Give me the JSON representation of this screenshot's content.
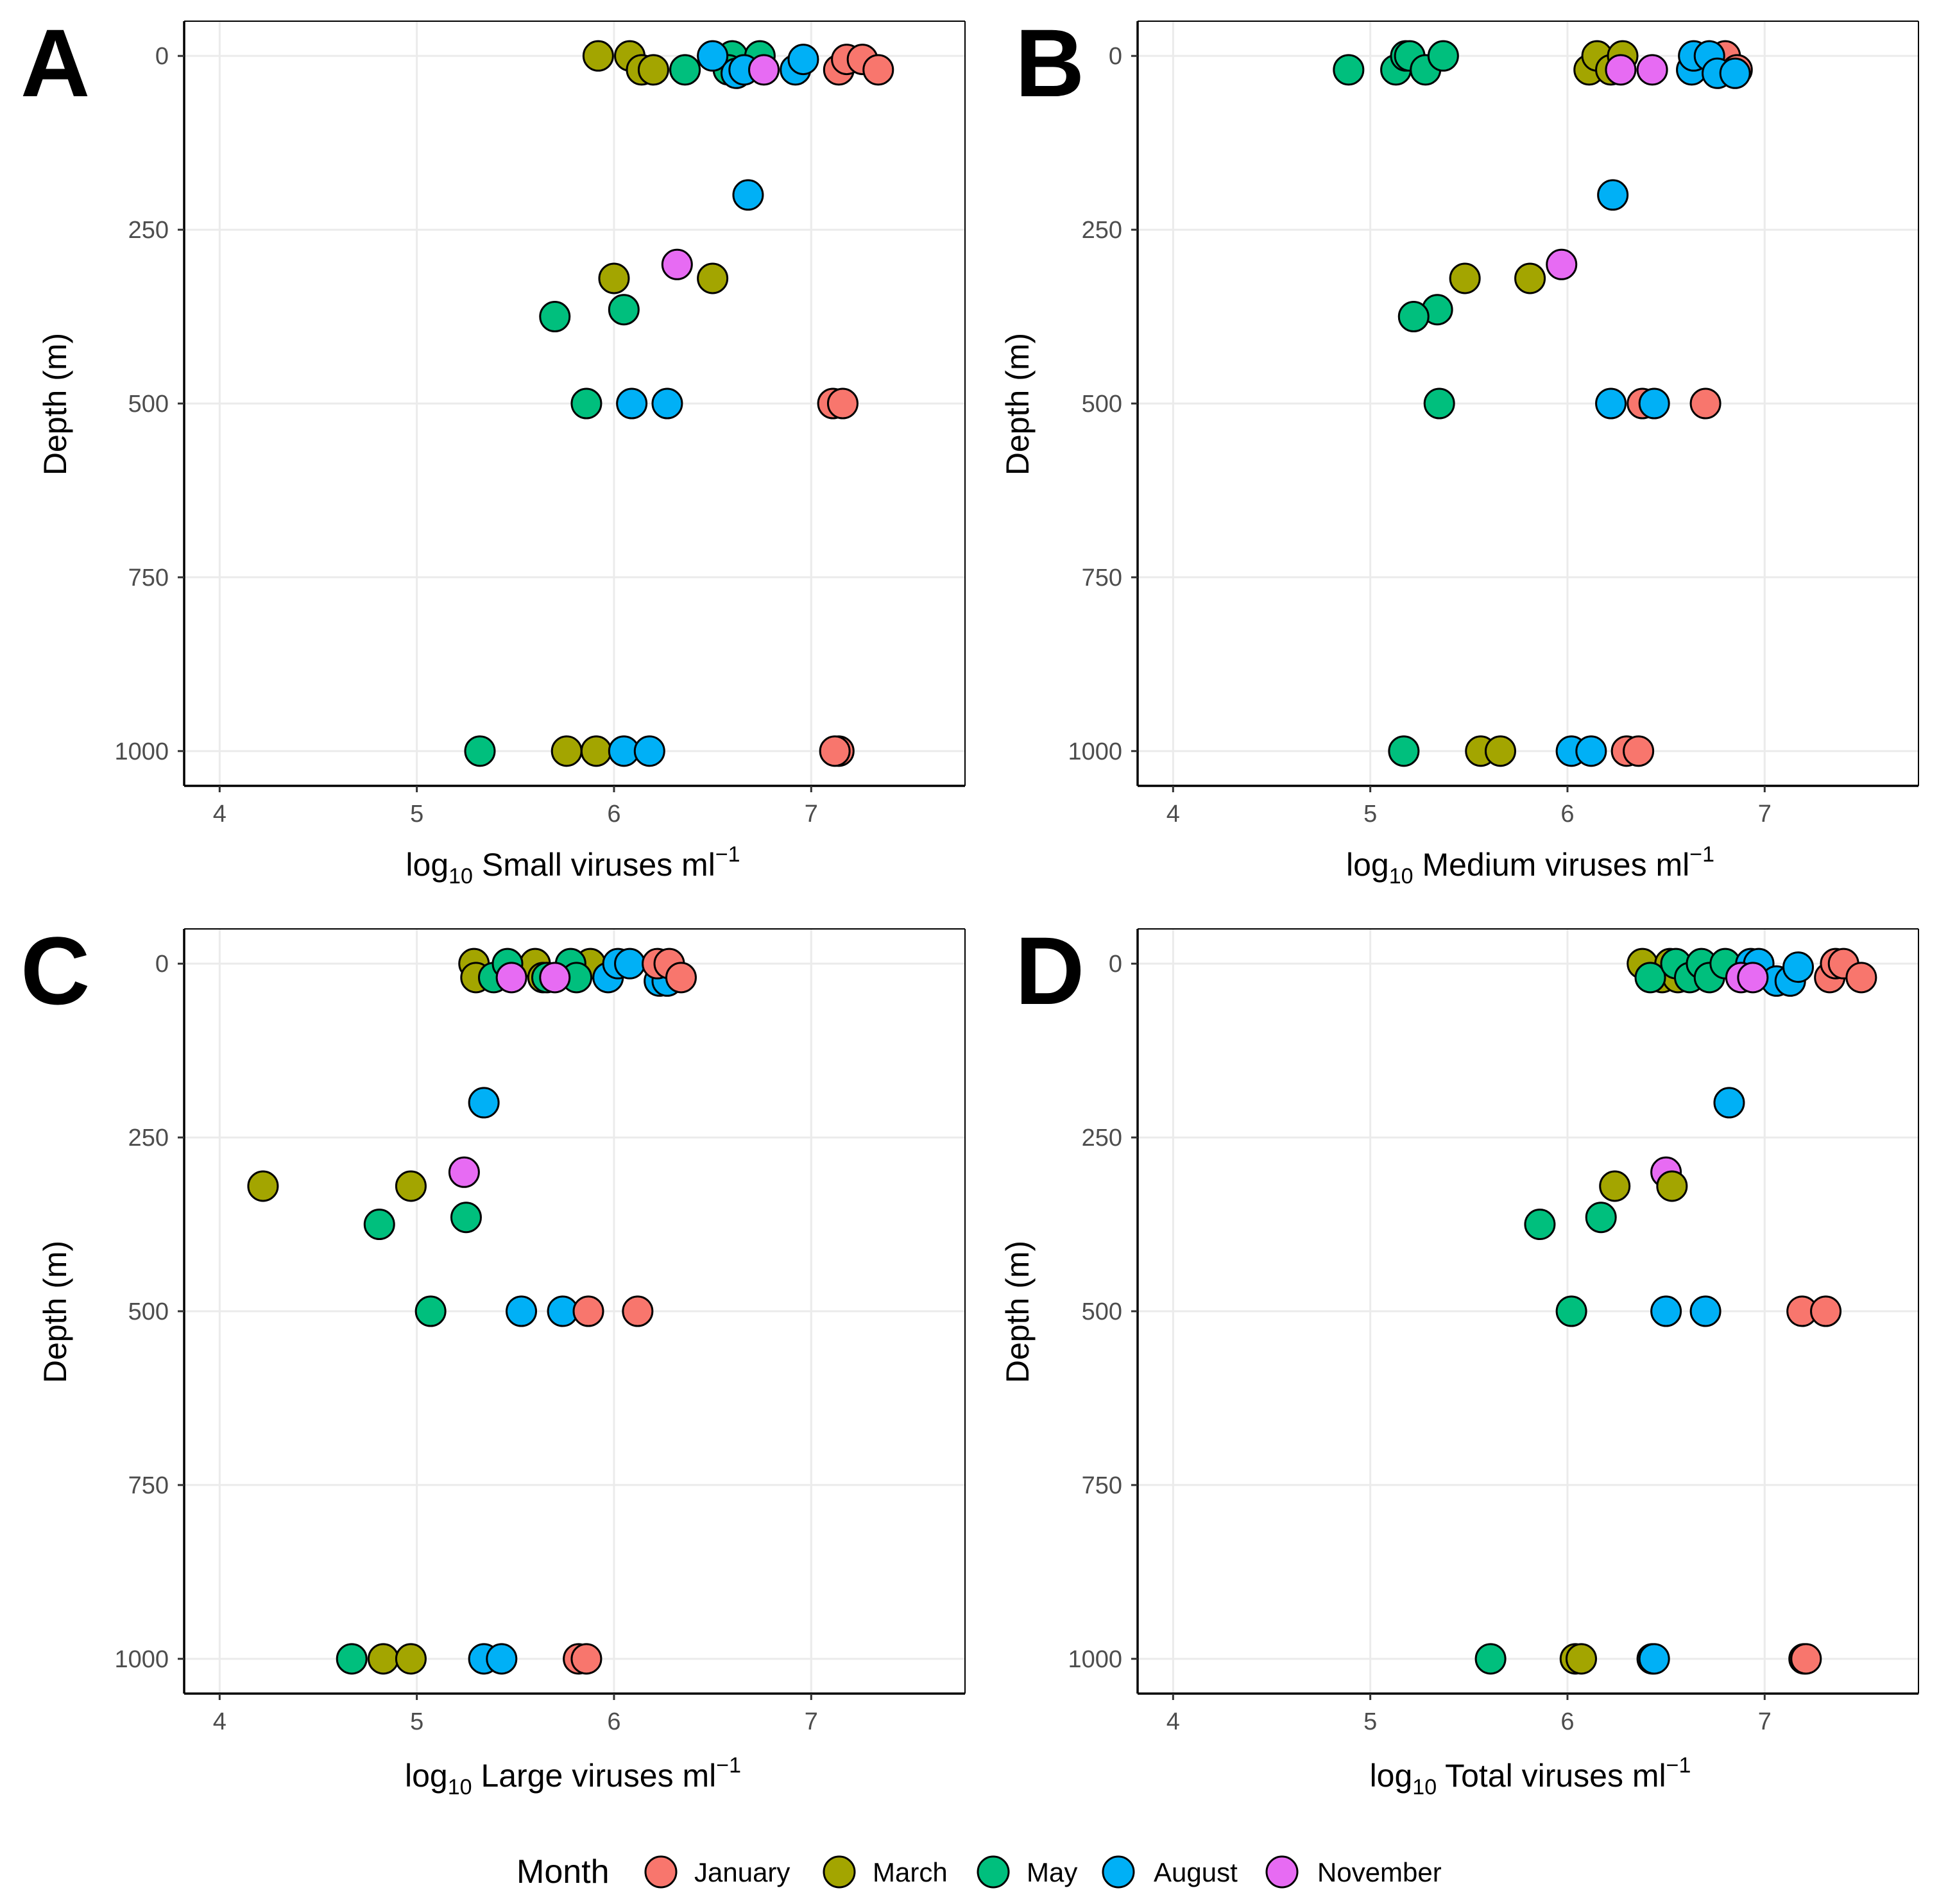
{
  "colors": {
    "January": "#F8766D",
    "March": "#A3A500",
    "May": "#00BF7D",
    "August": "#00B0F6",
    "November": "#E76BF3",
    "grid": "#ebebeb",
    "axis": "#000000",
    "tick_text": "#4d4d4d"
  },
  "legend": {
    "title": "Month",
    "entries": [
      "January",
      "March",
      "May",
      "August",
      "November"
    ]
  },
  "chart_data": [
    {
      "panel": "A",
      "type": "scatter",
      "xlabel": {
        "prefix": "log",
        "sub": "10",
        "main": " Small viruses ml",
        "sup": "−1"
      },
      "ylabel": "Depth (m)",
      "xlim": [
        3.82,
        7.78
      ],
      "ylim": [
        1050,
        -50
      ],
      "xticks": [
        "4",
        "5",
        "6",
        "7"
      ],
      "yticks": [
        "0",
        "250",
        "500",
        "750",
        "1000"
      ],
      "points": [
        {
          "month": "March",
          "x": 5.92,
          "y": 0
        },
        {
          "month": "March",
          "x": 6.08,
          "y": 0
        },
        {
          "month": "March",
          "x": 6.14,
          "y": 20
        },
        {
          "month": "March",
          "x": 6.2,
          "y": 20
        },
        {
          "month": "May",
          "x": 6.36,
          "y": 20
        },
        {
          "month": "May",
          "x": 6.6,
          "y": 0
        },
        {
          "month": "May",
          "x": 6.74,
          "y": 0
        },
        {
          "month": "May",
          "x": 6.58,
          "y": 20
        },
        {
          "month": "August",
          "x": 6.5,
          "y": 0
        },
        {
          "month": "August",
          "x": 6.62,
          "y": 25
        },
        {
          "month": "August",
          "x": 6.66,
          "y": 20
        },
        {
          "month": "August",
          "x": 6.92,
          "y": 20
        },
        {
          "month": "August",
          "x": 6.96,
          "y": 5
        },
        {
          "month": "November",
          "x": 6.76,
          "y": 20
        },
        {
          "month": "January",
          "x": 7.14,
          "y": 20
        },
        {
          "month": "January",
          "x": 7.18,
          "y": 5
        },
        {
          "month": "January",
          "x": 7.26,
          "y": 5
        },
        {
          "month": "January",
          "x": 7.34,
          "y": 20
        },
        {
          "month": "August",
          "x": 6.68,
          "y": 200
        },
        {
          "month": "November",
          "x": 6.32,
          "y": 300
        },
        {
          "month": "March",
          "x": 6.0,
          "y": 320
        },
        {
          "month": "March",
          "x": 6.5,
          "y": 320
        },
        {
          "month": "May",
          "x": 6.05,
          "y": 365
        },
        {
          "month": "May",
          "x": 5.7,
          "y": 375
        },
        {
          "month": "May",
          "x": 5.86,
          "y": 500
        },
        {
          "month": "August",
          "x": 6.09,
          "y": 500
        },
        {
          "month": "August",
          "x": 6.27,
          "y": 500
        },
        {
          "month": "January",
          "x": 7.11,
          "y": 500
        },
        {
          "month": "January",
          "x": 7.16,
          "y": 500
        },
        {
          "month": "May",
          "x": 5.32,
          "y": 1000
        },
        {
          "month": "March",
          "x": 5.76,
          "y": 1000
        },
        {
          "month": "March",
          "x": 5.91,
          "y": 1000
        },
        {
          "month": "August",
          "x": 6.05,
          "y": 1000
        },
        {
          "month": "August",
          "x": 6.18,
          "y": 1000
        },
        {
          "month": "January",
          "x": 7.14,
          "y": 1000
        },
        {
          "month": "January",
          "x": 7.12,
          "y": 1000
        }
      ]
    },
    {
      "panel": "B",
      "type": "scatter",
      "xlabel": {
        "prefix": "log",
        "sub": "10",
        "main": " Medium viruses ml",
        "sup": "−1"
      },
      "ylabel": "Depth (m)",
      "xlim": [
        3.82,
        7.78
      ],
      "ylim": [
        1050,
        -50
      ],
      "xticks": [
        "4",
        "5",
        "6",
        "7"
      ],
      "yticks": [
        "0",
        "250",
        "500",
        "750",
        "1000"
      ],
      "points": [
        {
          "month": "May",
          "x": 4.89,
          "y": 20
        },
        {
          "month": "May",
          "x": 5.13,
          "y": 20
        },
        {
          "month": "May",
          "x": 5.18,
          "y": 0
        },
        {
          "month": "May",
          "x": 5.2,
          "y": 0
        },
        {
          "month": "May",
          "x": 5.28,
          "y": 20
        },
        {
          "month": "May",
          "x": 5.37,
          "y": 0
        },
        {
          "month": "March",
          "x": 6.11,
          "y": 20
        },
        {
          "month": "March",
          "x": 6.15,
          "y": 0
        },
        {
          "month": "March",
          "x": 6.22,
          "y": 20
        },
        {
          "month": "March",
          "x": 6.28,
          "y": 0
        },
        {
          "month": "November",
          "x": 6.27,
          "y": 20
        },
        {
          "month": "November",
          "x": 6.43,
          "y": 20
        },
        {
          "month": "January",
          "x": 6.8,
          "y": 0
        },
        {
          "month": "January",
          "x": 6.86,
          "y": 20
        },
        {
          "month": "August",
          "x": 6.63,
          "y": 20
        },
        {
          "month": "August",
          "x": 6.64,
          "y": 0
        },
        {
          "month": "August",
          "x": 6.72,
          "y": 0
        },
        {
          "month": "August",
          "x": 6.76,
          "y": 25
        },
        {
          "month": "August",
          "x": 6.85,
          "y": 25
        },
        {
          "month": "August",
          "x": 6.23,
          "y": 200
        },
        {
          "month": "November",
          "x": 5.97,
          "y": 300
        },
        {
          "month": "March",
          "x": 5.48,
          "y": 320
        },
        {
          "month": "March",
          "x": 5.81,
          "y": 320
        },
        {
          "month": "May",
          "x": 5.34,
          "y": 365
        },
        {
          "month": "May",
          "x": 5.22,
          "y": 375
        },
        {
          "month": "May",
          "x": 5.35,
          "y": 500
        },
        {
          "month": "August",
          "x": 6.22,
          "y": 500
        },
        {
          "month": "January",
          "x": 6.38,
          "y": 500
        },
        {
          "month": "August",
          "x": 6.44,
          "y": 500
        },
        {
          "month": "January",
          "x": 6.7,
          "y": 500
        },
        {
          "month": "May",
          "x": 5.17,
          "y": 1000
        },
        {
          "month": "March",
          "x": 5.56,
          "y": 1000
        },
        {
          "month": "March",
          "x": 5.66,
          "y": 1000
        },
        {
          "month": "August",
          "x": 6.02,
          "y": 1000
        },
        {
          "month": "August",
          "x": 6.12,
          "y": 1000
        },
        {
          "month": "January",
          "x": 6.3,
          "y": 1000
        },
        {
          "month": "January",
          "x": 6.36,
          "y": 1000
        }
      ]
    },
    {
      "panel": "C",
      "type": "scatter",
      "xlabel": {
        "prefix": "log",
        "sub": "10",
        "main": " Large viruses ml",
        "sup": "−1"
      },
      "ylabel": "Depth (m)",
      "xlim": [
        3.82,
        7.78
      ],
      "ylim": [
        1050,
        -50
      ],
      "xticks": [
        "4",
        "5",
        "6",
        "7"
      ],
      "yticks": [
        "0",
        "250",
        "500",
        "750",
        "1000"
      ],
      "points": [
        {
          "month": "March",
          "x": 5.29,
          "y": 0
        },
        {
          "month": "March",
          "x": 5.3,
          "y": 20
        },
        {
          "month": "March",
          "x": 5.6,
          "y": 0
        },
        {
          "month": "March",
          "x": 5.64,
          "y": 20
        },
        {
          "month": "March",
          "x": 5.88,
          "y": 0
        },
        {
          "month": "May",
          "x": 5.39,
          "y": 20
        },
        {
          "month": "May",
          "x": 5.46,
          "y": 0
        },
        {
          "month": "May",
          "x": 5.78,
          "y": 0
        },
        {
          "month": "May",
          "x": 5.81,
          "y": 20
        },
        {
          "month": "May",
          "x": 5.66,
          "y": 20
        },
        {
          "month": "November",
          "x": 5.48,
          "y": 20
        },
        {
          "month": "November",
          "x": 5.7,
          "y": 20
        },
        {
          "month": "August",
          "x": 5.97,
          "y": 20
        },
        {
          "month": "August",
          "x": 6.02,
          "y": 0
        },
        {
          "month": "August",
          "x": 6.08,
          "y": 0
        },
        {
          "month": "August",
          "x": 6.23,
          "y": 25
        },
        {
          "month": "August",
          "x": 6.27,
          "y": 25
        },
        {
          "month": "January",
          "x": 6.22,
          "y": 0
        },
        {
          "month": "January",
          "x": 6.28,
          "y": 0
        },
        {
          "month": "January",
          "x": 6.34,
          "y": 20
        },
        {
          "month": "August",
          "x": 5.34,
          "y": 200
        },
        {
          "month": "November",
          "x": 5.24,
          "y": 300
        },
        {
          "month": "March",
          "x": 4.22,
          "y": 320
        },
        {
          "month": "March",
          "x": 4.97,
          "y": 320
        },
        {
          "month": "May",
          "x": 5.25,
          "y": 365
        },
        {
          "month": "May",
          "x": 4.81,
          "y": 375
        },
        {
          "month": "May",
          "x": 5.07,
          "y": 500
        },
        {
          "month": "August",
          "x": 5.53,
          "y": 500
        },
        {
          "month": "August",
          "x": 5.74,
          "y": 500
        },
        {
          "month": "January",
          "x": 5.87,
          "y": 500
        },
        {
          "month": "January",
          "x": 6.12,
          "y": 500
        },
        {
          "month": "May",
          "x": 4.67,
          "y": 1000
        },
        {
          "month": "March",
          "x": 4.83,
          "y": 1000
        },
        {
          "month": "March",
          "x": 4.97,
          "y": 1000
        },
        {
          "month": "August",
          "x": 5.34,
          "y": 1000
        },
        {
          "month": "August",
          "x": 5.43,
          "y": 1000
        },
        {
          "month": "January",
          "x": 5.82,
          "y": 1000
        },
        {
          "month": "January",
          "x": 5.86,
          "y": 1000
        }
      ]
    },
    {
      "panel": "D",
      "type": "scatter",
      "xlabel": {
        "prefix": "log",
        "sub": "10",
        "main": " Total viruses ml",
        "sup": "−1"
      },
      "ylabel": "Depth (m)",
      "xlim": [
        3.82,
        7.78
      ],
      "ylim": [
        1050,
        -50
      ],
      "xticks": [
        "4",
        "5",
        "6",
        "7"
      ],
      "yticks": [
        "0",
        "250",
        "500",
        "750",
        "1000"
      ],
      "points": [
        {
          "month": "March",
          "x": 6.38,
          "y": 0
        },
        {
          "month": "March",
          "x": 6.48,
          "y": 20
        },
        {
          "month": "March",
          "x": 6.52,
          "y": 0
        },
        {
          "month": "March",
          "x": 6.56,
          "y": 20
        },
        {
          "month": "May",
          "x": 6.42,
          "y": 20
        },
        {
          "month": "May",
          "x": 6.55,
          "y": 0
        },
        {
          "month": "May",
          "x": 6.62,
          "y": 20
        },
        {
          "month": "May",
          "x": 6.68,
          "y": 0
        },
        {
          "month": "May",
          "x": 6.72,
          "y": 20
        },
        {
          "month": "May",
          "x": 6.8,
          "y": 0
        },
        {
          "month": "August",
          "x": 6.93,
          "y": 0
        },
        {
          "month": "August",
          "x": 6.97,
          "y": 0
        },
        {
          "month": "August",
          "x": 7.06,
          "y": 25
        },
        {
          "month": "August",
          "x": 7.13,
          "y": 25
        },
        {
          "month": "August",
          "x": 7.17,
          "y": 5
        },
        {
          "month": "November",
          "x": 6.88,
          "y": 20
        },
        {
          "month": "November",
          "x": 6.94,
          "y": 20
        },
        {
          "month": "January",
          "x": 7.33,
          "y": 20
        },
        {
          "month": "January",
          "x": 7.36,
          "y": 0
        },
        {
          "month": "January",
          "x": 7.4,
          "y": 0
        },
        {
          "month": "January",
          "x": 7.49,
          "y": 20
        },
        {
          "month": "August",
          "x": 6.82,
          "y": 200
        },
        {
          "month": "November",
          "x": 6.5,
          "y": 300
        },
        {
          "month": "March",
          "x": 6.24,
          "y": 320
        },
        {
          "month": "March",
          "x": 6.53,
          "y": 320
        },
        {
          "month": "May",
          "x": 6.17,
          "y": 365
        },
        {
          "month": "May",
          "x": 5.86,
          "y": 375
        },
        {
          "month": "May",
          "x": 6.02,
          "y": 500
        },
        {
          "month": "August",
          "x": 6.5,
          "y": 500
        },
        {
          "month": "August",
          "x": 6.7,
          "y": 500
        },
        {
          "month": "January",
          "x": 7.19,
          "y": 500
        },
        {
          "month": "January",
          "x": 7.31,
          "y": 500
        },
        {
          "month": "May",
          "x": 5.61,
          "y": 1000
        },
        {
          "month": "March",
          "x": 6.04,
          "y": 1000
        },
        {
          "month": "March",
          "x": 6.07,
          "y": 1000
        },
        {
          "month": "August",
          "x": 6.43,
          "y": 1000
        },
        {
          "month": "August",
          "x": 6.44,
          "y": 1000
        },
        {
          "month": "January",
          "x": 7.2,
          "y": 1000
        },
        {
          "month": "January",
          "x": 7.21,
          "y": 1000
        }
      ]
    }
  ]
}
